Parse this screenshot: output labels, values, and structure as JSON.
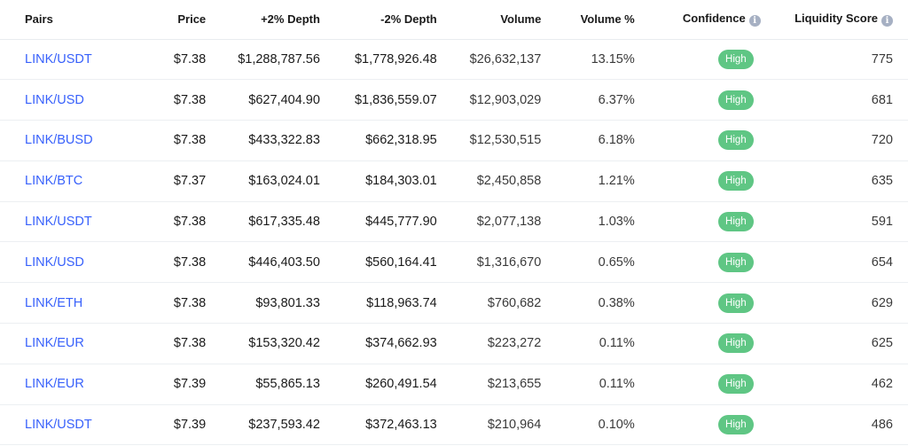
{
  "table": {
    "columns": {
      "pairs": "Pairs",
      "price": "Price",
      "plus_depth": "+2% Depth",
      "minus_depth": "-2% Depth",
      "volume": "Volume",
      "volume_pct": "Volume %",
      "confidence": "Confidence",
      "liquidity": "Liquidity Score"
    },
    "info_glyph": "i",
    "rows": [
      {
        "pair": "LINK/USDT",
        "price": "$7.38",
        "plus": "$1,288,787.56",
        "minus": "$1,778,926.48",
        "volume": "$26,632,137",
        "volume_pct": "13.15%",
        "confidence": "High",
        "liquidity": "775"
      },
      {
        "pair": "LINK/USD",
        "price": "$7.38",
        "plus": "$627,404.90",
        "minus": "$1,836,559.07",
        "volume": "$12,903,029",
        "volume_pct": "6.37%",
        "confidence": "High",
        "liquidity": "681"
      },
      {
        "pair": "LINK/BUSD",
        "price": "$7.38",
        "plus": "$433,322.83",
        "minus": "$662,318.95",
        "volume": "$12,530,515",
        "volume_pct": "6.18%",
        "confidence": "High",
        "liquidity": "720"
      },
      {
        "pair": "LINK/BTC",
        "price": "$7.37",
        "plus": "$163,024.01",
        "minus": "$184,303.01",
        "volume": "$2,450,858",
        "volume_pct": "1.21%",
        "confidence": "High",
        "liquidity": "635"
      },
      {
        "pair": "LINK/USDT",
        "price": "$7.38",
        "plus": "$617,335.48",
        "minus": "$445,777.90",
        "volume": "$2,077,138",
        "volume_pct": "1.03%",
        "confidence": "High",
        "liquidity": "591"
      },
      {
        "pair": "LINK/USD",
        "price": "$7.38",
        "plus": "$446,403.50",
        "minus": "$560,164.41",
        "volume": "$1,316,670",
        "volume_pct": "0.65%",
        "confidence": "High",
        "liquidity": "654"
      },
      {
        "pair": "LINK/ETH",
        "price": "$7.38",
        "plus": "$93,801.33",
        "minus": "$118,963.74",
        "volume": "$760,682",
        "volume_pct": "0.38%",
        "confidence": "High",
        "liquidity": "629"
      },
      {
        "pair": "LINK/EUR",
        "price": "$7.38",
        "plus": "$153,320.42",
        "minus": "$374,662.93",
        "volume": "$223,272",
        "volume_pct": "0.11%",
        "confidence": "High",
        "liquidity": "625"
      },
      {
        "pair": "LINK/EUR",
        "price": "$7.39",
        "plus": "$55,865.13",
        "minus": "$260,491.54",
        "volume": "$213,655",
        "volume_pct": "0.11%",
        "confidence": "High",
        "liquidity": "462"
      },
      {
        "pair": "LINK/USDT",
        "price": "$7.39",
        "plus": "$237,593.42",
        "minus": "$372,463.13",
        "volume": "$210,964",
        "volume_pct": "0.10%",
        "confidence": "High",
        "liquidity": "486"
      }
    ]
  },
  "colors": {
    "link": "#3861fb",
    "badge_high": "#5fc684",
    "info_icon": "#a6b0c3"
  }
}
